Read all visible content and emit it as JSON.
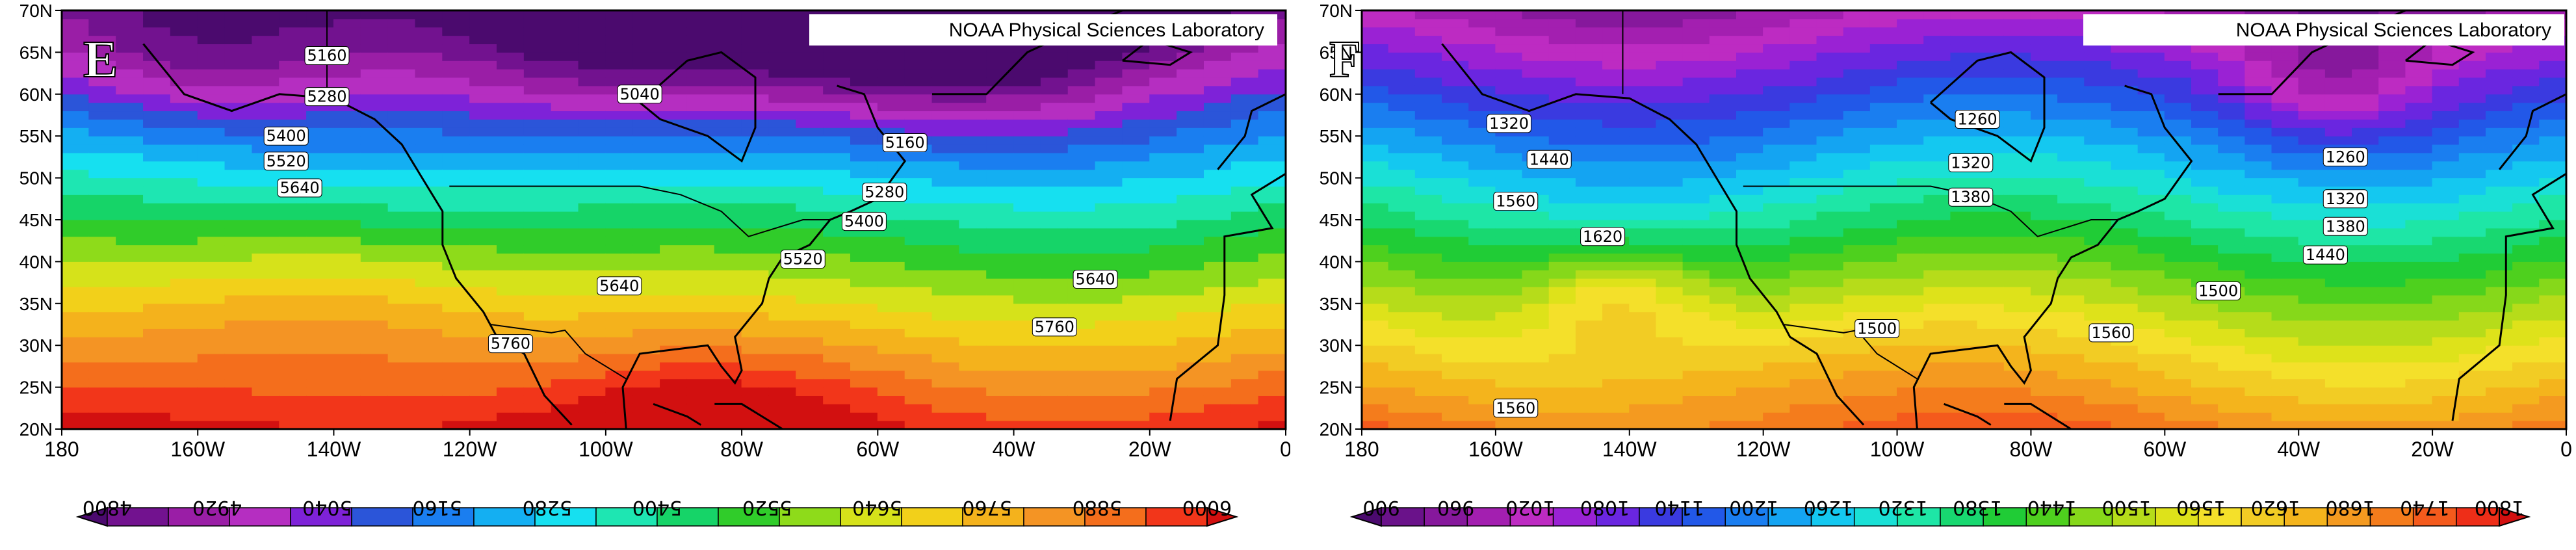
{
  "credit": "NOAA Physical Sciences Laboratory",
  "lon_ticks": [
    "180",
    "160W",
    "140W",
    "120W",
    "100W",
    "80W",
    "60W",
    "40W",
    "20W",
    "0"
  ],
  "lat_ticks": [
    "70N",
    "65N",
    "60N",
    "55N",
    "50N",
    "45N",
    "40N",
    "35N",
    "30N",
    "25N",
    "20N"
  ],
  "panels": [
    {
      "letter": "E",
      "colorbar_levels": [
        "4800",
        "4920",
        "5040",
        "5160",
        "5280",
        "5400",
        "5520",
        "5640",
        "5760",
        "5880",
        "6000"
      ],
      "colors": [
        "#4b0a6e",
        "#72128f",
        "#9a1ea6",
        "#b52ec1",
        "#7e22d8",
        "#2b55d9",
        "#1a7ef0",
        "#14aff2",
        "#16e0f0",
        "#1ee6b2",
        "#16d468",
        "#30cc2a",
        "#8edb1a",
        "#d6e21a",
        "#f2d01a",
        "#f4b21c",
        "#f49424",
        "#f46e1c",
        "#f2361a",
        "#d21010"
      ],
      "contour_labels": [
        {
          "text": "5160",
          "lon": -141,
          "lat": 64.6
        },
        {
          "text": "5280",
          "lon": -141,
          "lat": 59.7
        },
        {
          "text": "5040",
          "lon": -95,
          "lat": 60
        },
        {
          "text": "5400",
          "lon": -147,
          "lat": 55
        },
        {
          "text": "5520",
          "lon": -147,
          "lat": 52
        },
        {
          "text": "5640",
          "lon": -145,
          "lat": 48.8
        },
        {
          "text": "5160",
          "lon": -56,
          "lat": 54.2
        },
        {
          "text": "5280",
          "lon": -59,
          "lat": 48.3
        },
        {
          "text": "5400",
          "lon": -62,
          "lat": 44.8
        },
        {
          "text": "5520",
          "lon": -71,
          "lat": 40.3
        },
        {
          "text": "5640",
          "lon": -98,
          "lat": 37.1
        },
        {
          "text": "5640",
          "lon": -28,
          "lat": 37.9
        },
        {
          "text": "5760",
          "lon": -114,
          "lat": 30.2
        },
        {
          "text": "5760",
          "lon": -34,
          "lat": 32.2
        }
      ]
    },
    {
      "letter": "F",
      "colorbar_levels": [
        "900",
        "960",
        "1020",
        "1080",
        "1140",
        "1200",
        "1260",
        "1320",
        "1380",
        "1440",
        "1500",
        "1560",
        "1620",
        "1680",
        "1740",
        "1800"
      ],
      "colors": [
        "#4b0a6e",
        "#6a128a",
        "#86189c",
        "#a31fb0",
        "#bd2bc2",
        "#9a22d4",
        "#6a26e0",
        "#3a3ae0",
        "#2258e8",
        "#1a7ef0",
        "#14a4f2",
        "#14c8f0",
        "#1ae0d6",
        "#1ee6a6",
        "#18d870",
        "#20cc36",
        "#4ed01e",
        "#86d81a",
        "#b6dc1a",
        "#dee21a",
        "#f4e02a",
        "#f2cc24",
        "#f4b41c",
        "#f49a20",
        "#f47c1c",
        "#f45a1c",
        "#ee2e18",
        "#d21010"
      ],
      "contour_labels": [
        {
          "text": "1320",
          "lon": -158,
          "lat": 56.5
        },
        {
          "text": "1440",
          "lon": -152,
          "lat": 52.2
        },
        {
          "text": "1560",
          "lon": -157,
          "lat": 47.2
        },
        {
          "text": "1620",
          "lon": -144,
          "lat": 43
        },
        {
          "text": "1500",
          "lon": -103,
          "lat": 32
        },
        {
          "text": "1560",
          "lon": -157,
          "lat": 22.5
        },
        {
          "text": "1260",
          "lon": -88,
          "lat": 57
        },
        {
          "text": "1320",
          "lon": -89,
          "lat": 51.8
        },
        {
          "text": "1380",
          "lon": -89,
          "lat": 47.7
        },
        {
          "text": "1260",
          "lon": -33,
          "lat": 52.5
        },
        {
          "text": "1320",
          "lon": -33,
          "lat": 47.5
        },
        {
          "text": "1380",
          "lon": -33,
          "lat": 44.2
        },
        {
          "text": "1440",
          "lon": -36,
          "lat": 40.8
        },
        {
          "text": "1500",
          "lon": -52,
          "lat": 36.5
        },
        {
          "text": "1560",
          "lon": -68,
          "lat": 31.5
        }
      ]
    }
  ]
}
